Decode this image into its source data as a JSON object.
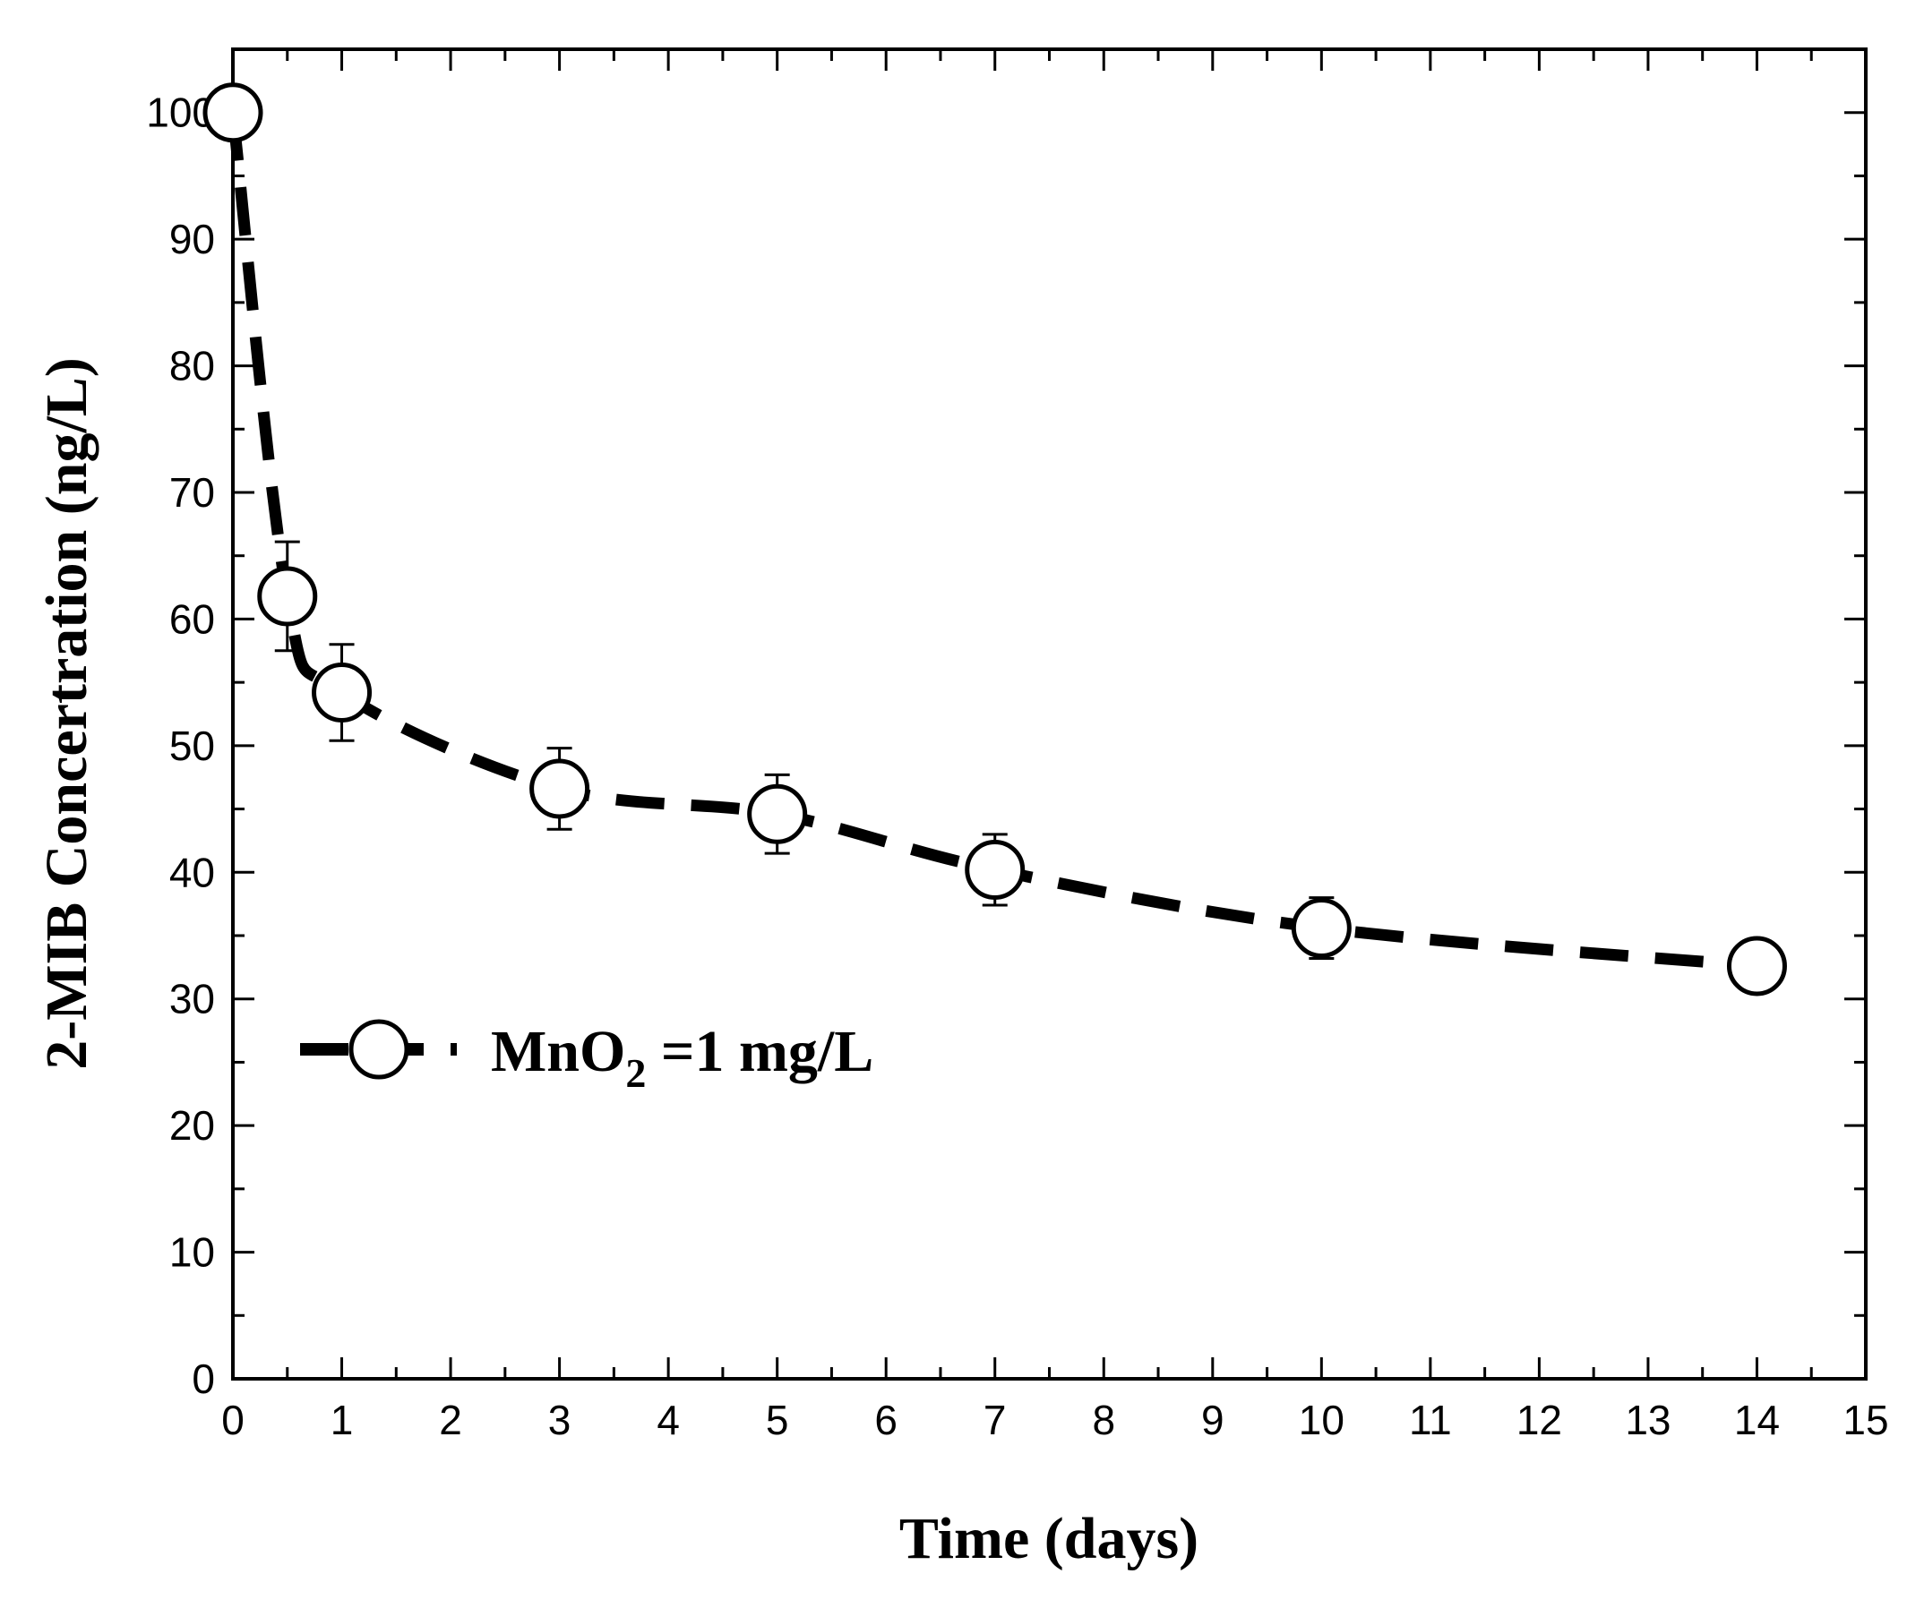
{
  "chart_data": {
    "type": "line",
    "title": "",
    "xlabel": "Time (days)",
    "ylabel": "2-MIB Concertration (ng/L)",
    "xlim": [
      0,
      15
    ],
    "ylim": [
      0,
      105
    ],
    "xticks": [
      0,
      1,
      2,
      3,
      4,
      5,
      6,
      7,
      8,
      9,
      10,
      11,
      12,
      13,
      14,
      15
    ],
    "yticks": [
      0,
      10,
      20,
      30,
      40,
      50,
      60,
      70,
      80,
      90,
      100
    ],
    "grid": false,
    "legend_position": "left-center",
    "series": [
      {
        "name": "MnO2 =1 mg/L",
        "legend": {
          "main": "MnO",
          "sub": "2",
          "rest": " =1 mg/L"
        },
        "line_style": "dashed",
        "marker": "open-circle",
        "color": "#000000",
        "x": [
          0,
          0.5,
          1,
          3,
          5,
          7,
          10,
          14
        ],
        "y": [
          100,
          61.8,
          54.2,
          46.6,
          44.6,
          40.2,
          35.6,
          32.6
        ],
        "error": [
          0,
          4.3,
          3.8,
          3.2,
          3.1,
          2.8,
          2.4,
          0
        ]
      }
    ]
  }
}
